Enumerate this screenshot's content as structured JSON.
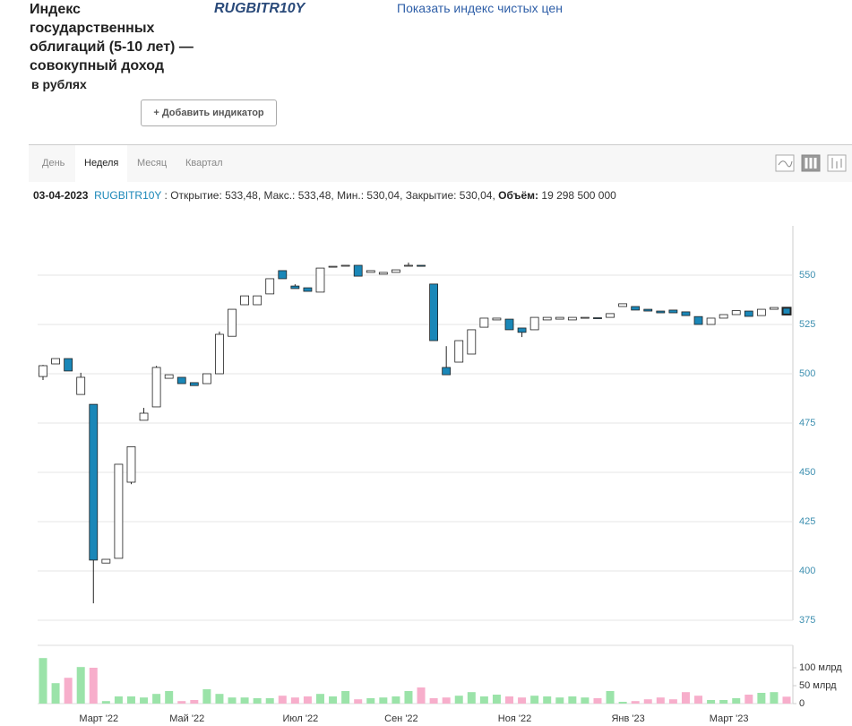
{
  "header": {
    "title": "Индекс государственных облигаций (5-10 лет) — совокупный доход",
    "subtitle": "в рублях",
    "ticker": "RUGBITR10Y",
    "link": "Показать индекс чистых цен",
    "button": "+ Добавить индикатор"
  },
  "tabs": [
    "День",
    "Неделя",
    "Месяц",
    "Квартал"
  ],
  "active_tab": 1,
  "info": {
    "date": "03-04-2023",
    "ticker": "RUGBITR10Y",
    "text": ": Открытие: 533,48, Макс.: 533,48, Мин.: 530,04, Закрытие: 530,04,",
    "volume_label": "Объём:",
    "volume": "19 298 500 000"
  },
  "chart_data": {
    "type": "candlestick",
    "categories": [
      null,
      null,
      null,
      null,
      "Март '22",
      null,
      null,
      null,
      null,
      null,
      null,
      "Май '22",
      null,
      null,
      null,
      null,
      null,
      null,
      null,
      null,
      "Июл '22",
      null,
      null,
      null,
      null,
      null,
      null,
      null,
      "Сен '22",
      null,
      null,
      null,
      null,
      null,
      null,
      null,
      null,
      "Ноя '22",
      null,
      null,
      null,
      null,
      null,
      null,
      null,
      null,
      "Янв '23",
      null,
      null,
      null,
      null,
      null,
      null,
      null,
      "Март '23",
      null,
      null,
      null,
      null,
      null
    ],
    "open": [
      498.6,
      505,
      507.7,
      489.5,
      484.5,
      404,
      406.4,
      445,
      476.4,
      483.2,
      497.7,
      498.2,
      495.5,
      495,
      500,
      519,
      535,
      535,
      540.5,
      552.3,
      544.5,
      543.6,
      541.4,
      554.2,
      554.7,
      555,
      551.4,
      550.5,
      551.4,
      554.8,
      555,
      545.5,
      503.2,
      505.9,
      510,
      523.6,
      527.3,
      527.7,
      523.2,
      522.3,
      527.3,
      527.7,
      527.3,
      528.2,
      528.4,
      528.6,
      534.1,
      534.1,
      532.7,
      531.8,
      532.3,
      531.4,
      529,
      525,
      528.2,
      530,
      531.8,
      529.5,
      532.7,
      533.48
    ],
    "high": [
      504.5,
      507.7,
      507.7,
      500.5,
      484.5,
      405.9,
      454.1,
      463,
      482.7,
      504,
      499.5,
      498.2,
      495.5,
      500,
      521.4,
      532.7,
      539.5,
      539.5,
      548.2,
      552.3,
      545.4,
      543.6,
      553.6,
      554.5,
      555,
      555,
      552.3,
      551.4,
      552.7,
      556.4,
      555,
      545.5,
      514,
      516.8,
      522.3,
      528.2,
      528.2,
      527.7,
      523.2,
      528.6,
      528.6,
      528.6,
      528.6,
      528.6,
      528.4,
      530.5,
      535.5,
      534.1,
      532.7,
      531.8,
      532.3,
      531.4,
      529,
      528.2,
      530,
      532,
      531.8,
      532.7,
      533.6,
      533.48
    ],
    "low": [
      496.8,
      505,
      501.4,
      489.5,
      383.6,
      404,
      406.4,
      444,
      476.4,
      483.2,
      497.7,
      495,
      494,
      495,
      500,
      519,
      535,
      535,
      540.5,
      548.2,
      543.2,
      541.8,
      541.4,
      554.2,
      554.7,
      549.5,
      551.4,
      550.5,
      551.4,
      554.8,
      554.5,
      516.8,
      499.5,
      505.9,
      510,
      523.6,
      527.3,
      522.3,
      518.6,
      522.3,
      527.3,
      527.7,
      527.3,
      528.2,
      528.1,
      528.6,
      534.1,
      532.3,
      531.8,
      530.9,
      530.9,
      529.5,
      525,
      525,
      528.2,
      530,
      529.1,
      529.5,
      532.7,
      530.04
    ],
    "close": [
      504.1,
      507.7,
      501.4,
      498.2,
      405.5,
      405.9,
      454.1,
      463,
      480,
      503.2,
      499.5,
      495,
      494,
      500,
      520,
      532.7,
      539.5,
      539.5,
      548.2,
      548.2,
      543.2,
      541.8,
      553.6,
      554.5,
      555,
      549.5,
      552.3,
      551.4,
      552.7,
      555,
      554.5,
      516.8,
      499.5,
      516.8,
      522.3,
      528.2,
      528.2,
      522.3,
      521,
      528.6,
      528.6,
      528.6,
      528.6,
      528.6,
      528.1,
      530.5,
      535.5,
      532.3,
      531.8,
      530.9,
      530.9,
      529.5,
      525,
      528.2,
      530,
      532,
      529.1,
      532.7,
      533.6,
      530.04
    ],
    "up_color": "#ffffff",
    "down_color": "#1a87b8",
    "ylim": [
      375,
      575
    ],
    "yticks": [
      375,
      400,
      425,
      450,
      475,
      500,
      525,
      550
    ],
    "grid": true,
    "volume": {
      "values": [
        127,
        57,
        72,
        102,
        100,
        7,
        20,
        20,
        17,
        27,
        35,
        7,
        10,
        40,
        27,
        17,
        17,
        15,
        15,
        22,
        17,
        20,
        27,
        20,
        35,
        12,
        15,
        17,
        20,
        35,
        45,
        15,
        17,
        22,
        32,
        20,
        25,
        20,
        17,
        22,
        20,
        17,
        20,
        17,
        15,
        35,
        5,
        7,
        12,
        17,
        12,
        32,
        22,
        10,
        10,
        15,
        25,
        30,
        32,
        19.2985
      ],
      "up_color": "#9be3a9",
      "down_color": "#f7aecb",
      "ylim": [
        0,
        160
      ],
      "yticks": [
        {
          "value": 100,
          "label": "100 млрд"
        },
        {
          "value": 50,
          "label": "50 млрд"
        },
        0
      ]
    }
  }
}
